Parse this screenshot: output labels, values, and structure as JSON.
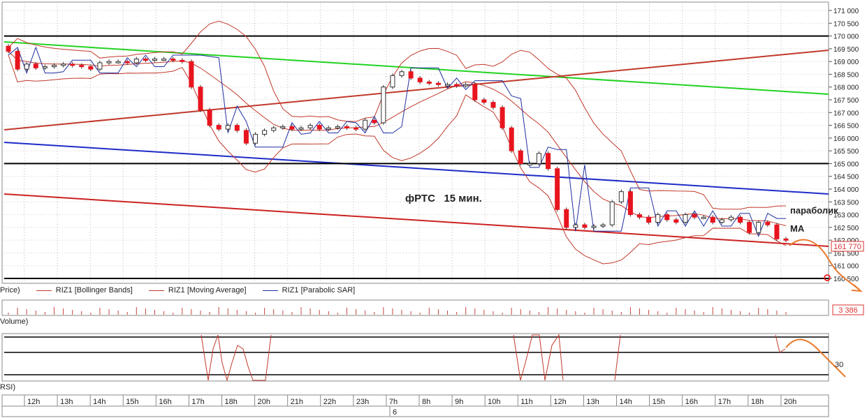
{
  "chart_data": {
    "type": "candlestick",
    "title": "фРТС   15 мин.",
    "instrument": "RIZ1",
    "price_axis": {
      "min": 160500,
      "max": 171000,
      "step": 500,
      "tick_labels": [
        "171 000",
        "170 500",
        "170 000",
        "169 500",
        "169 000",
        "168 500",
        "168 000",
        "167 500",
        "167 000",
        "166 500",
        "166 000",
        "165 500",
        "165 000",
        "164 500",
        "164 000",
        "163 500",
        "163 000",
        "162 500",
        "162 000",
        "161 500",
        "161 000",
        "160 500"
      ]
    },
    "last_price_label": "161 770",
    "last_price": 161770,
    "time_labels": [
      "12h",
      "13h",
      "14h",
      "15h",
      "16h",
      "17h",
      "18h",
      "20h",
      "21h",
      "22h",
      "23h",
      "7h",
      "8h",
      "9h",
      "10h",
      "11h",
      "12h",
      "13h",
      "14h",
      "15h",
      "16h",
      "17h",
      "18h",
      "20h"
    ],
    "day_label": "6",
    "legend": [
      {
        "label": "Price)",
        "color": "#000000"
      },
      {
        "label": "RIZ1 [Bollinger Bands]",
        "color": "#c0392b"
      },
      {
        "label": "RIZ1 [Moving Average]",
        "color": "#c0392b"
      },
      {
        "label": "RIZ1 [Parabolic SAR]",
        "color": "#1f2fa0"
      }
    ],
    "annotations": [
      {
        "text": "параболик"
      },
      {
        "text": "МА"
      }
    ],
    "horizontal_levels": [
      170000,
      165000,
      160500
    ],
    "candles_close": [
      169400,
      168700,
      168900,
      168750,
      168800,
      168850,
      168900,
      168850,
      168800,
      168700,
      168950,
      169000,
      169000,
      168950,
      169100,
      169050,
      169100,
      169100,
      169050,
      169000,
      168000,
      167100,
      166500,
      166350,
      166500,
      166300,
      165800,
      166150,
      166300,
      166400,
      166450,
      166350,
      166400,
      166500,
      166350,
      166400,
      166450,
      166400,
      166350,
      166700,
      166600,
      168000,
      168450,
      168600,
      168350,
      168200,
      168150,
      168100,
      168100,
      168050,
      168100,
      167500,
      167400,
      167200,
      166400,
      165500,
      165000,
      165000,
      165400,
      164800,
      163200,
      162500,
      162600,
      162500,
      162550,
      162600,
      163500,
      163900,
      163000,
      162900,
      162700,
      163000,
      162800,
      162700,
      163000,
      162900,
      162900,
      162700,
      162800,
      162900,
      162700,
      162300,
      162700,
      162600,
      162050,
      162000
    ],
    "volume": {
      "label": "Volume)",
      "last_label": "3 386"
    },
    "rsi": {
      "label": "RSI)",
      "level_label": "30"
    },
    "colors": {
      "bear": "#e8141e",
      "bull": "#ffffff",
      "bb": "#c0392b",
      "sar": "#1f2fa0",
      "green": "#22d322",
      "forecast": "#e9782b",
      "level": "#000000"
    }
  }
}
